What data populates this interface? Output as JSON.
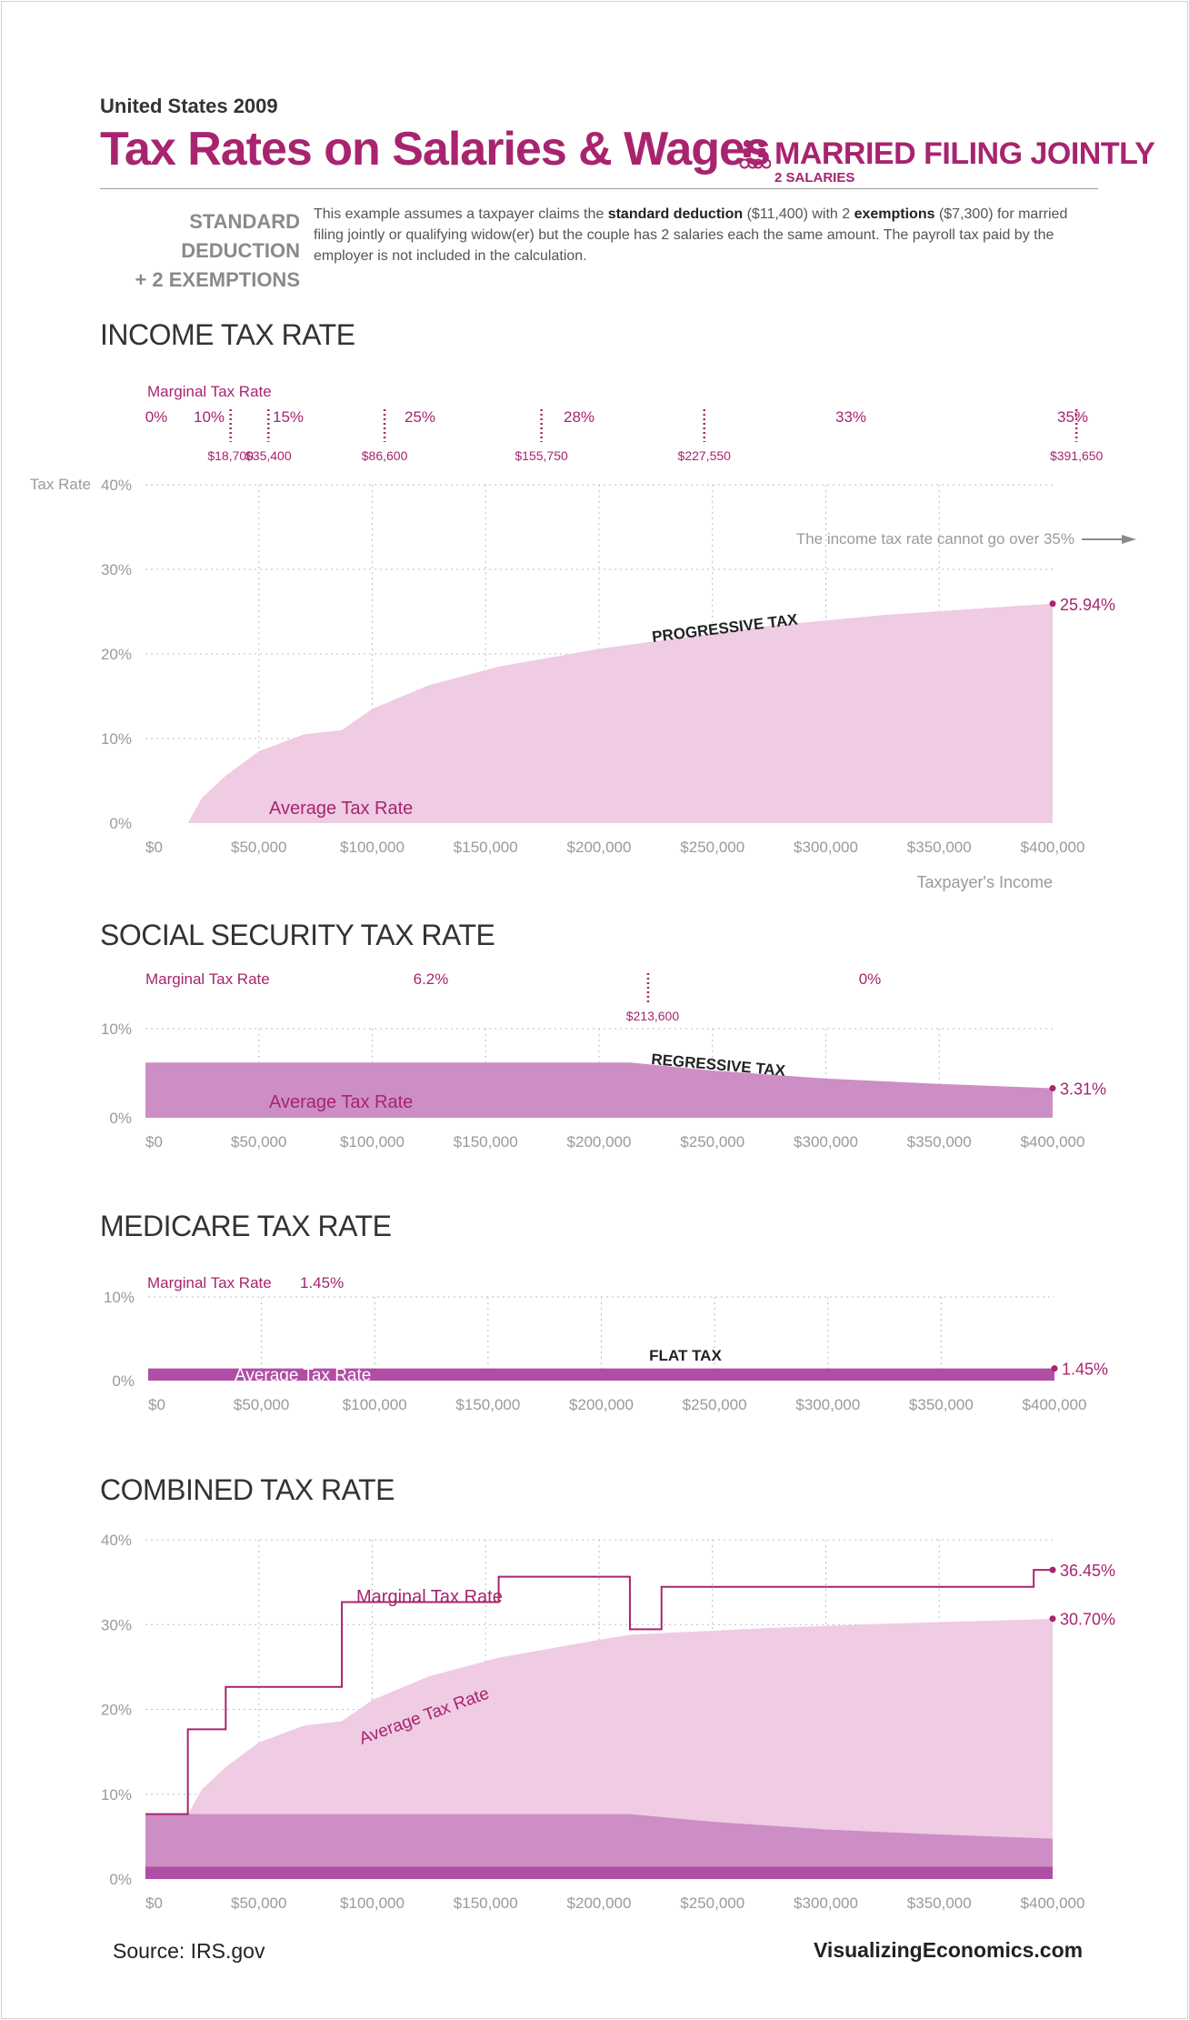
{
  "header": {
    "year_label": "United States 2009",
    "title": "Tax Rates on Salaries & Wages",
    "filing_status": "MARRIED FILING JOINTLY",
    "filing_sub": "2 SALARIES",
    "std_line1": "STANDARD DEDUCTION",
    "std_line2": "+ 2 EXEMPTIONS",
    "desc_pre": "This example assumes a taxpayer claims the ",
    "desc_b1": "standard deduction",
    "desc_mid1": " ($11,400) with 2 ",
    "desc_b2": "exemptions",
    "desc_post": " ($7,300) for married filing jointly or qualifying widow(er) but the couple has 2 salaries each the same amount.  The payroll tax paid by the employer is not included in the calculation."
  },
  "sections": {
    "income": "INCOME TAX RATE",
    "social": "SOCIAL SECURITY TAX RATE",
    "medicare": "MEDICARE TAX RATE",
    "combined": "COMBINED TAX RATE"
  },
  "colors": {
    "accent": "#a8246f",
    "light_fill": "#efcbe4",
    "mid_fill": "#cc8ec5",
    "dark_fill": "#b04ea5",
    "grid": "#bdbdbd",
    "axis_text": "#9a9a9a"
  },
  "footer": {
    "source": "Source:  IRS.gov",
    "site": "VisualizingEconomics.com"
  },
  "chart_data": [
    {
      "id": "income",
      "type": "area",
      "xlim": [
        0,
        400000
      ],
      "ylim": [
        0,
        40
      ],
      "x_ticks": [
        "$0",
        "$50,000",
        "$100,000",
        "$150,000",
        "$200,000",
        "$250,000",
        "$300,000",
        "$350,000",
        "$400,000"
      ],
      "y_ticks": [
        "0%",
        "10%",
        "20%",
        "30%",
        "40%"
      ],
      "ylabel": "Tax Rate",
      "xlabel": "Taxpayer's Income",
      "marginal_label": "Marginal Tax Rate",
      "brackets": [
        {
          "rate": "0%",
          "threshold": "$18,700",
          "x": 18700
        },
        {
          "rate": "10%",
          "threshold": "$35,400",
          "x": 35400
        },
        {
          "rate": "15%",
          "threshold": "$86,600",
          "x": 86600
        },
        {
          "rate": "25%",
          "threshold": "$155,750",
          "x": 155750
        },
        {
          "rate": "28%",
          "threshold": "$227,550",
          "x": 227550
        },
        {
          "rate": "33%",
          "threshold": "$391,650",
          "x": 391650
        },
        {
          "rate": "35%",
          "threshold": "",
          "x": null
        }
      ],
      "series": [
        {
          "name": "Average Tax Rate",
          "x": [
            0,
            18700,
            25000,
            35400,
            50000,
            70000,
            86600,
            100000,
            125000,
            155750,
            200000,
            227550,
            275000,
            325000,
            391650,
            400000
          ],
          "y": [
            0,
            0,
            3,
            5.6,
            8.5,
            10.5,
            11.0,
            13.5,
            16.3,
            18.5,
            20.6,
            21.6,
            23.3,
            24.6,
            25.8,
            25.94
          ]
        }
      ],
      "annotations": {
        "progressive": "PROGRESSIVE TAX",
        "cap_note": "The income tax rate cannot go over 35%",
        "end_value": "25.94%",
        "avg_label": "Average Tax Rate"
      }
    },
    {
      "id": "social",
      "type": "area",
      "xlim": [
        0,
        400000
      ],
      "ylim": [
        0,
        10
      ],
      "x_ticks": [
        "$0",
        "$50,000",
        "$100,000",
        "$150,000",
        "$200,000",
        "$250,000",
        "$300,000",
        "$350,000",
        "$400,000"
      ],
      "y_ticks": [
        "0%",
        "10%"
      ],
      "marginal_label": "Marginal Tax Rate",
      "rates": [
        {
          "rate": "6.2%",
          "x": 125000
        },
        {
          "rate": "0%",
          "x": 320000
        }
      ],
      "threshold": {
        "label": "$213,600",
        "x": 213600
      },
      "series": [
        {
          "name": "Average Tax Rate",
          "x": [
            0,
            213600,
            250000,
            300000,
            350000,
            400000
          ],
          "y": [
            6.2,
            6.2,
            5.3,
            4.4,
            3.8,
            3.31
          ]
        }
      ],
      "annotations": {
        "regressive": "REGRESSIVE TAX",
        "end_value": "3.31%",
        "avg_label": "Average Tax Rate"
      }
    },
    {
      "id": "medicare",
      "type": "area",
      "xlim": [
        0,
        400000
      ],
      "ylim": [
        0,
        10
      ],
      "x_ticks": [
        "$0",
        "$50,000",
        "$100,000",
        "$150,000",
        "$200,000",
        "$250,000",
        "$300,000",
        "$350,000",
        "$400,000"
      ],
      "y_ticks": [
        "0%",
        "10%"
      ],
      "marginal_label": "Marginal Tax Rate",
      "marginal_value": "1.45%",
      "series": [
        {
          "name": "Average Tax Rate",
          "x": [
            0,
            400000
          ],
          "y": [
            1.45,
            1.45
          ]
        }
      ],
      "annotations": {
        "flat": "FLAT TAX",
        "end_value": "1.45%",
        "avg_label": "Average Tax Rate"
      }
    },
    {
      "id": "combined",
      "type": "area",
      "xlim": [
        0,
        400000
      ],
      "ylim": [
        0,
        40
      ],
      "x_ticks": [
        "$0",
        "$50,000",
        "$100,000",
        "$150,000",
        "$200,000",
        "$250,000",
        "$300,000",
        "$350,000",
        "$400,000"
      ],
      "y_ticks": [
        "0%",
        "10%",
        "20%",
        "30%",
        "40%"
      ],
      "series": [
        {
          "name": "Average Tax Rate",
          "x": [
            0,
            18700,
            25000,
            35400,
            50000,
            70000,
            86600,
            100000,
            125000,
            155750,
            200000,
            213600,
            227550,
            275000,
            325000,
            391650,
            400000
          ],
          "y": [
            7.65,
            7.65,
            10.6,
            13.2,
            16.1,
            18.1,
            18.6,
            21.1,
            23.9,
            26.1,
            28.2,
            28.8,
            29.0,
            29.6,
            30.1,
            30.6,
            30.7
          ]
        },
        {
          "name": "Marginal Tax Rate",
          "x": [
            0,
            18700,
            18700,
            35400,
            35400,
            86600,
            86600,
            155750,
            155750,
            213600,
            213600,
            227550,
            227550,
            391650,
            391650,
            400000
          ],
          "y": [
            7.65,
            7.65,
            17.65,
            17.65,
            22.65,
            22.65,
            32.65,
            32.65,
            35.65,
            35.65,
            29.45,
            29.45,
            34.45,
            34.45,
            36.45,
            36.45
          ]
        }
      ],
      "annotations": {
        "marginal_label": "Marginal Tax Rate",
        "avg_label": "Average Tax Rate",
        "end_marginal": "36.45%",
        "end_average": "30.70%"
      }
    }
  ]
}
